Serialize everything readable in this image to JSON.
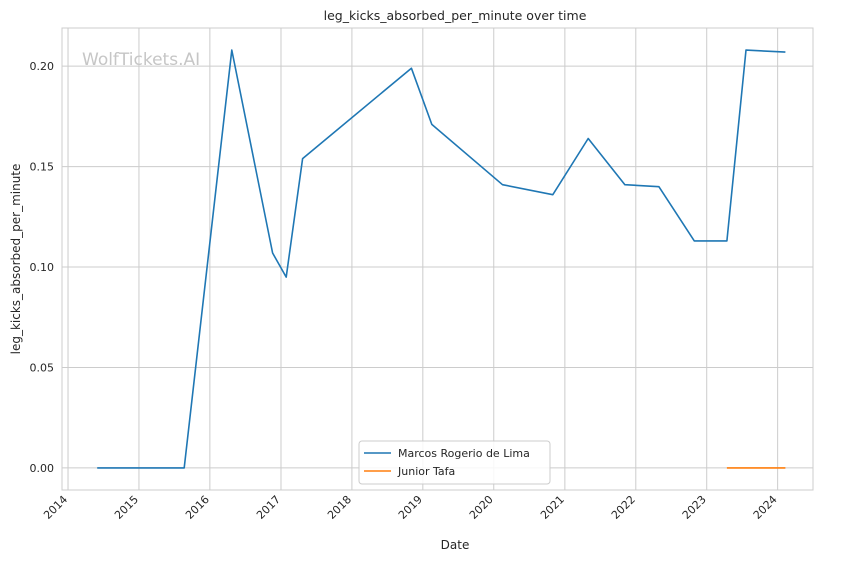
{
  "watermark": "WolfTickets.AI",
  "chart_data": {
    "type": "line",
    "title": "leg_kicks_absorbed_per_minute over time",
    "xlabel": "Date",
    "ylabel": "leg_kicks_absorbed_per_minute",
    "xlim": [
      "2013-12-01",
      "2024-07-01"
    ],
    "ylim": [
      -0.011,
      0.219
    ],
    "x_ticks": [
      "2014",
      "2015",
      "2016",
      "2017",
      "2018",
      "2019",
      "2020",
      "2021",
      "2022",
      "2023",
      "2024"
    ],
    "y_ticks": [
      "0.00",
      "0.05",
      "0.10",
      "0.15",
      "0.20"
    ],
    "grid": true,
    "legend_position": "bottom-center",
    "series": [
      {
        "name": "Marcos Rogerio de Lima",
        "color": "#1f77b4",
        "points": [
          [
            "2014-05-31",
            0.0
          ],
          [
            "2015-08-22",
            0.0
          ],
          [
            "2016-04-23",
            0.208
          ],
          [
            "2016-11-19",
            0.107
          ],
          [
            "2017-01-28",
            0.095
          ],
          [
            "2017-04-22",
            0.154
          ],
          [
            "2018-11-03",
            0.199
          ],
          [
            "2019-02-16",
            0.171
          ],
          [
            "2020-02-15",
            0.141
          ],
          [
            "2020-10-31",
            0.136
          ],
          [
            "2021-05-01",
            0.164
          ],
          [
            "2021-11-06",
            0.141
          ],
          [
            "2022-04-30",
            0.14
          ],
          [
            "2022-10-29",
            0.113
          ],
          [
            "2023-04-15",
            0.113
          ],
          [
            "2023-07-22",
            0.208
          ],
          [
            "2024-02-10",
            0.207
          ]
        ]
      },
      {
        "name": "Junior Tafa",
        "color": "#ff7f0e",
        "points": [
          [
            "2023-04-15",
            0.0
          ],
          [
            "2024-02-10",
            0.0
          ]
        ]
      }
    ]
  }
}
